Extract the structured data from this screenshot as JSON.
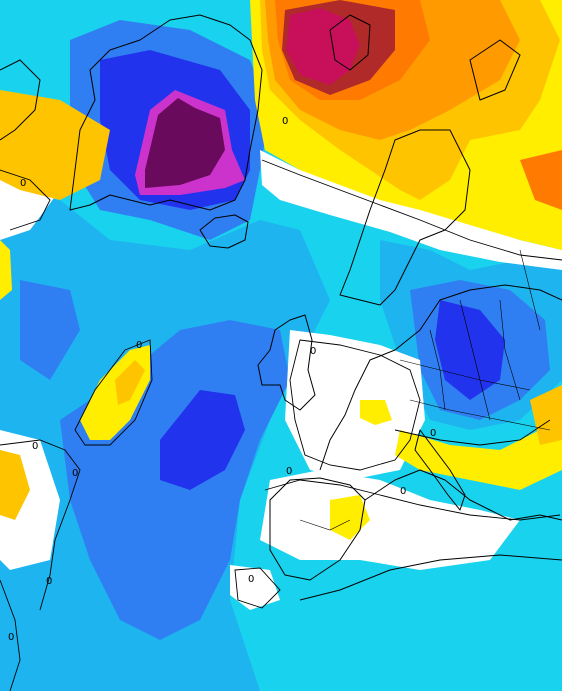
{
  "map": {
    "type": "anomaly-field",
    "palette": {
      "deep_purple": "#6a0a5c",
      "magenta": "#cc33cc",
      "blue": "#2233ee",
      "medium_blue": "#2f7ff2",
      "light_blue": "#1eb4f0",
      "cyan": "#19d2ee",
      "white": "#ffffff",
      "yellow": "#ffee00",
      "gold": "#ffc400",
      "orange": "#ff9a00",
      "dark_orange": "#ff7a00",
      "dark_red": "#b02a2a",
      "crimson": "#c8105a"
    },
    "contour_labels": [
      "0",
      "0",
      "0",
      "0",
      "0",
      "0",
      "0",
      "0",
      "0",
      "0",
      "0",
      "0"
    ]
  }
}
